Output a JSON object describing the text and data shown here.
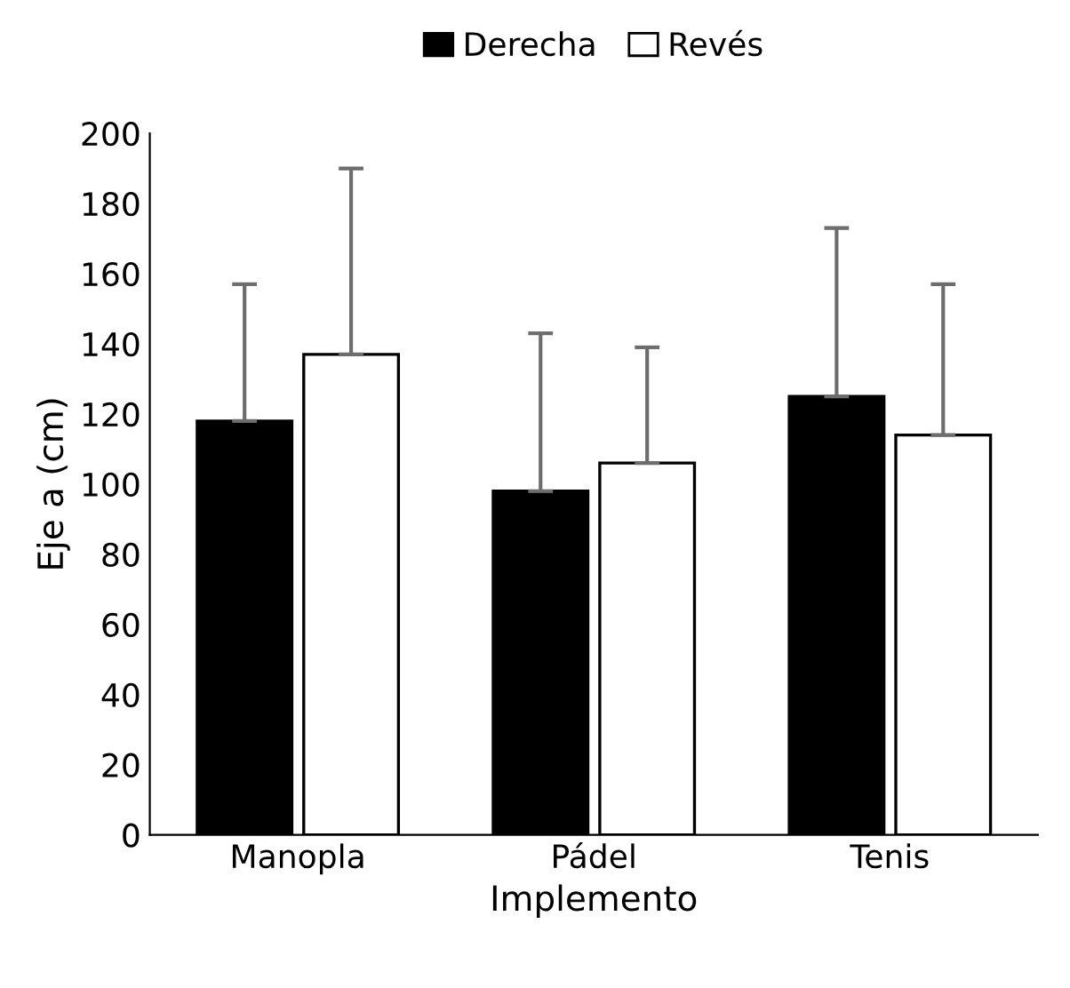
{
  "chart_data": {
    "type": "bar",
    "xlabel": "Implemento",
    "ylabel": "Eje a (cm)",
    "categories": [
      "Manopla",
      "Pádel",
      "Tenis"
    ],
    "series": [
      {
        "name": "Derecha",
        "color": "#000000",
        "values": [
          118,
          98,
          125
        ],
        "errors": [
          39,
          45,
          48
        ]
      },
      {
        "name": "Revés",
        "color": "#ffffff",
        "values": [
          137,
          106,
          114
        ],
        "errors": [
          53,
          33,
          43
        ]
      }
    ],
    "ylim": [
      0,
      200
    ],
    "yticks": [
      0,
      20,
      40,
      60,
      80,
      100,
      120,
      140,
      160,
      180,
      200
    ],
    "grid": false,
    "legend": "top"
  }
}
